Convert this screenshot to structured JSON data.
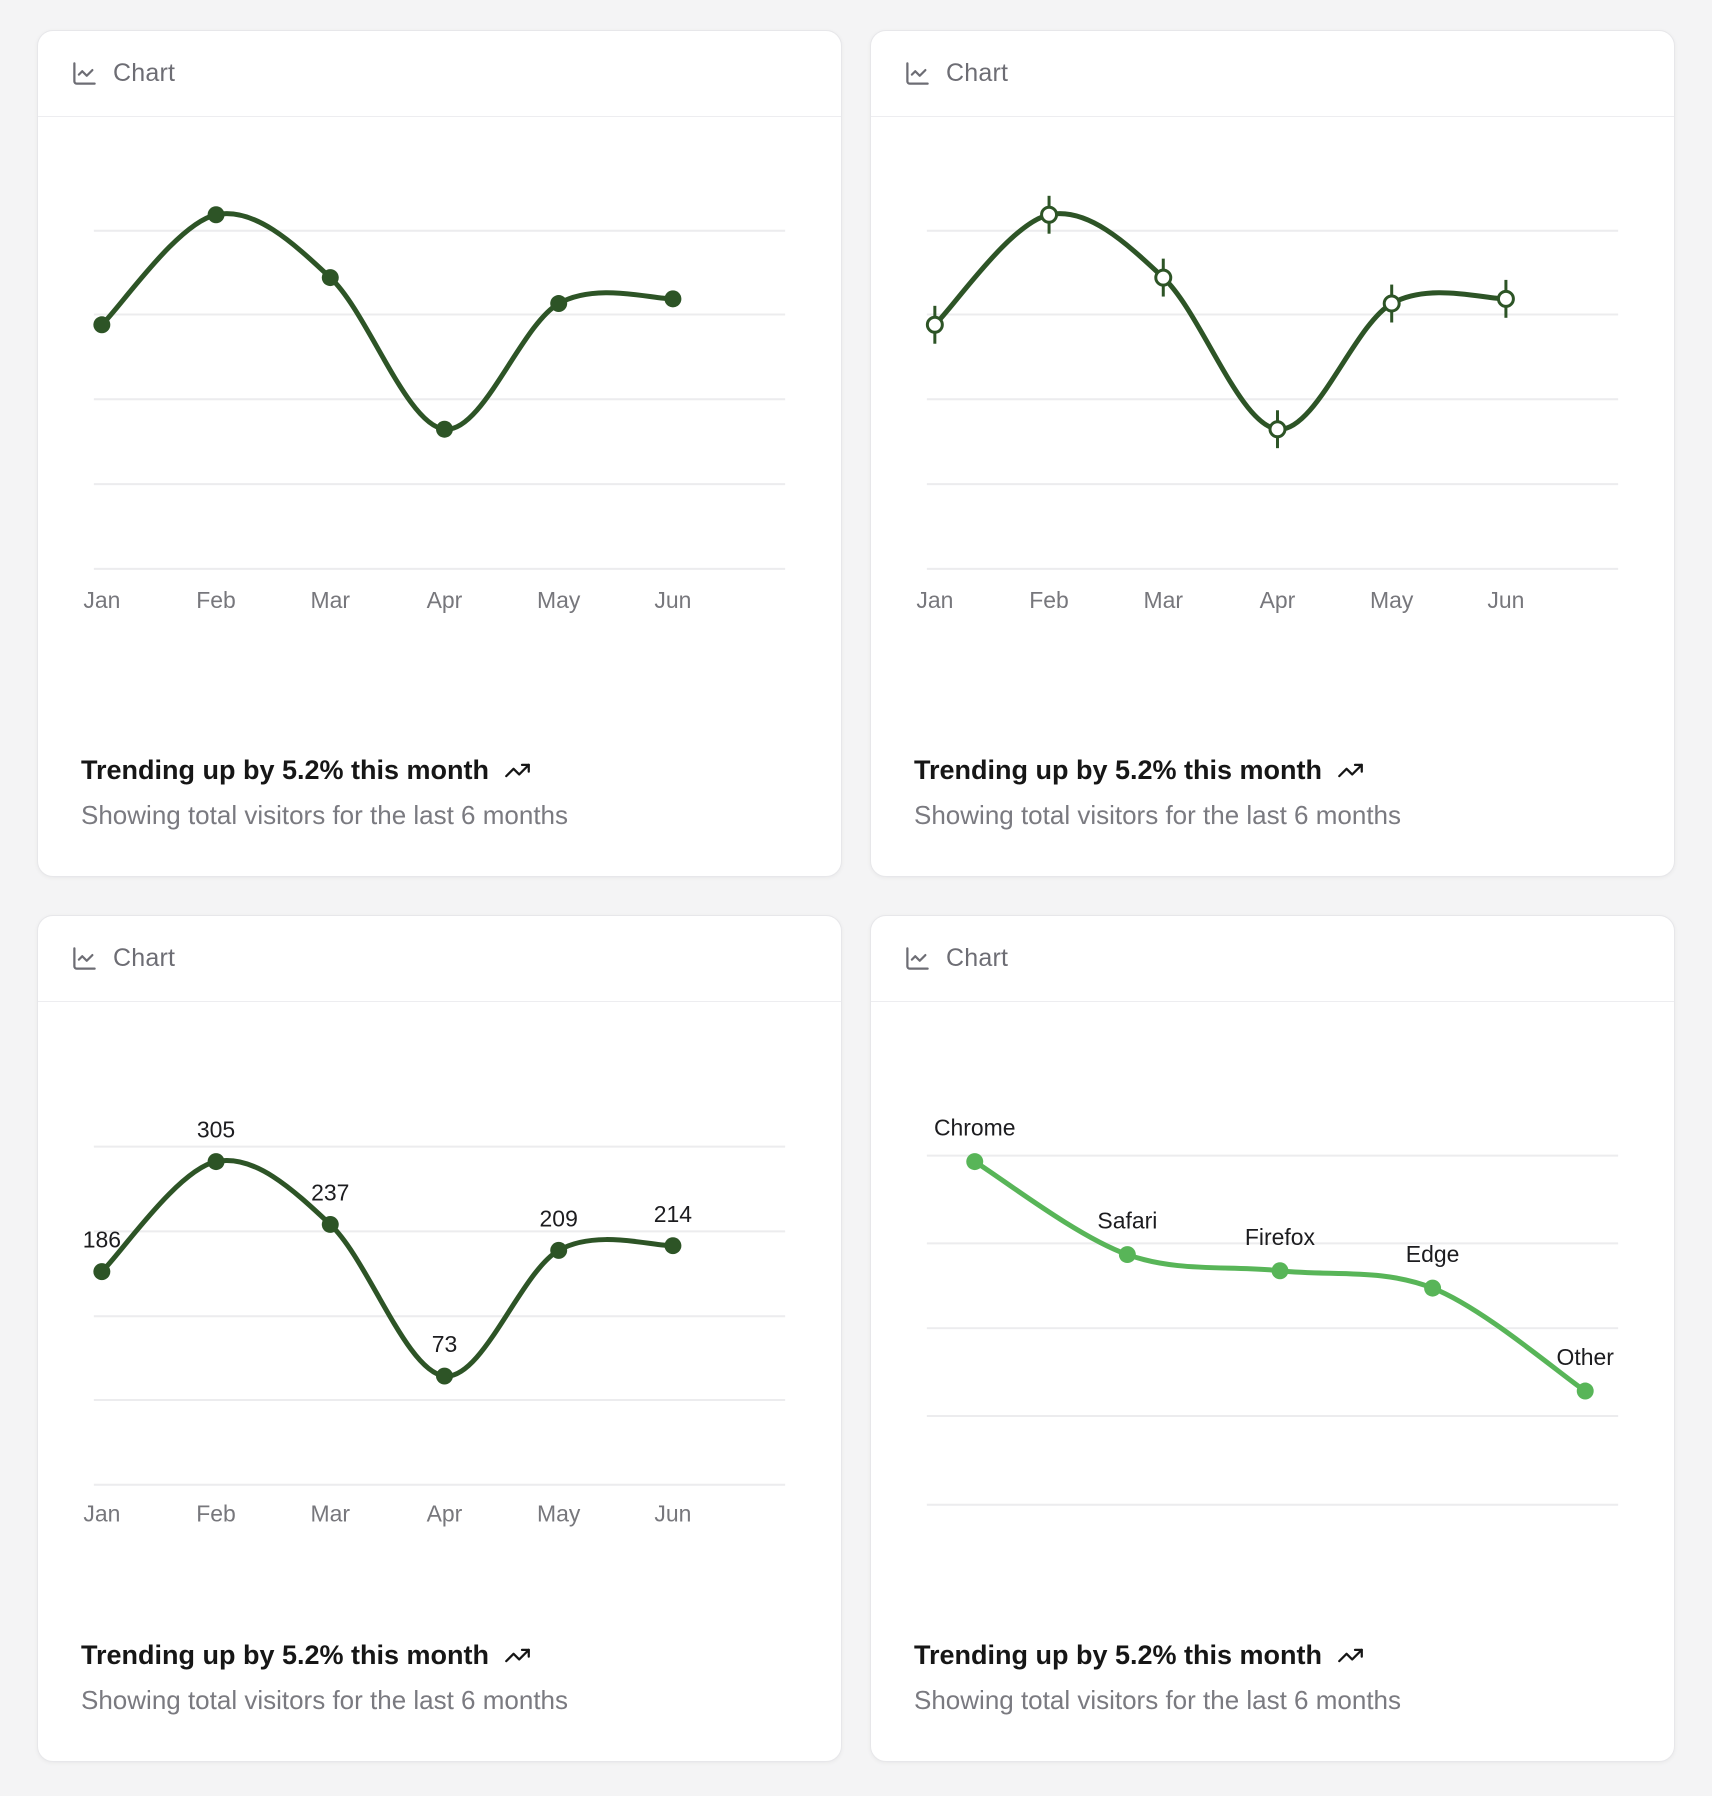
{
  "page": {
    "background_color": "#f4f4f5"
  },
  "colors": {
    "dark_green": "#2d5426",
    "light_green": "#58b558",
    "grid_line": "#ececee",
    "axis_label": "#77777c",
    "point_label": "#1c1c1f",
    "header_text": "#6d6d74",
    "footer_title": "#161616",
    "footer_subtitle": "#7a7a80"
  },
  "cards": [
    {
      "header": {
        "icon": "chart-line-icon",
        "title": "Chart"
      },
      "footer": {
        "trend": "Trending up by 5.2% this month",
        "trend_icon": "trending-up-icon",
        "description": "Showing total visitors for the last 6 months"
      }
    },
    {
      "header": {
        "icon": "chart-line-icon",
        "title": "Chart"
      },
      "footer": {
        "trend": "Trending up by 5.2% this month",
        "trend_icon": "trending-up-icon",
        "description": "Showing total visitors for the last 6 months"
      }
    },
    {
      "header": {
        "icon": "chart-line-icon",
        "title": "Chart"
      },
      "footer": {
        "trend": "Trending up by 5.2% this month",
        "trend_icon": "trending-up-icon",
        "description": "Showing total visitors for the last 6 months"
      }
    },
    {
      "header": {
        "icon": "chart-line-icon",
        "title": "Chart"
      },
      "footer": {
        "trend": "Trending up by 5.2% this month",
        "trend_icon": "trending-up-icon",
        "description": "Showing total visitors for the last 6 months"
      }
    }
  ],
  "chart_data": [
    {
      "type": "line",
      "curve": "natural",
      "x": [
        "Jan",
        "Feb",
        "Mar",
        "Apr",
        "May",
        "Jun"
      ],
      "series": [
        {
          "name": "visitors",
          "values": [
            186,
            305,
            237,
            73,
            209,
            214
          ]
        }
      ],
      "marker": "filled-dot",
      "point_labels": false,
      "x_axis_labels": true,
      "grid": "horizontal",
      "legend": "none",
      "line_color": "#2d5426"
    },
    {
      "type": "line",
      "curve": "natural",
      "x": [
        "Jan",
        "Feb",
        "Mar",
        "Apr",
        "May",
        "Jun"
      ],
      "series": [
        {
          "name": "visitors",
          "values": [
            186,
            305,
            237,
            73,
            209,
            214
          ]
        }
      ],
      "marker": "open-circle-with-vertical-tick",
      "point_labels": false,
      "x_axis_labels": true,
      "grid": "horizontal",
      "legend": "none",
      "line_color": "#2d5426"
    },
    {
      "type": "line",
      "curve": "natural",
      "x": [
        "Jan",
        "Feb",
        "Mar",
        "Apr",
        "May",
        "Jun"
      ],
      "series": [
        {
          "name": "visitors",
          "values": [
            186,
            305,
            237,
            73,
            209,
            214
          ]
        }
      ],
      "marker": "filled-dot",
      "point_labels": "values",
      "x_axis_labels": true,
      "grid": "horizontal",
      "legend": "none",
      "line_color": "#2d5426"
    },
    {
      "type": "line",
      "curve": "natural",
      "x": [
        "Chrome",
        "Safari",
        "Firefox",
        "Edge",
        "Other"
      ],
      "series": [
        {
          "name": "visitors",
          "values": [
            275,
            200,
            187,
            173,
            90
          ]
        }
      ],
      "marker": "filled-dot",
      "point_labels": "category-names",
      "x_axis_labels": false,
      "grid": "horizontal",
      "legend": "none",
      "line_color": "#58b558"
    }
  ]
}
